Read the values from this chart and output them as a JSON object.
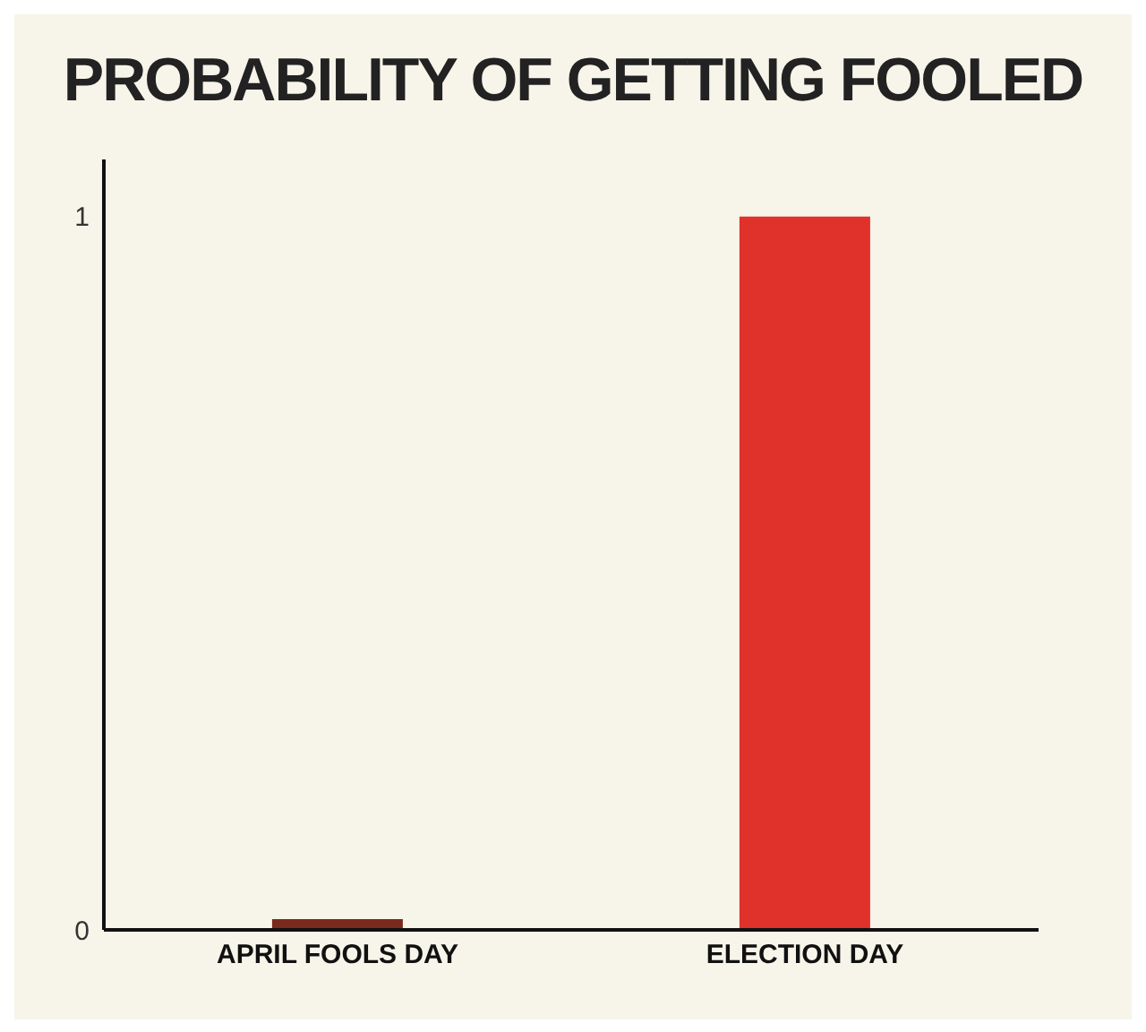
{
  "chart_data": {
    "type": "bar",
    "title": "PROBABILITY OF GETTING FOOLED",
    "categories": [
      "APRIL FOOLS DAY",
      "ELECTION DAY"
    ],
    "values": [
      0.015,
      1
    ],
    "colors": [
      "#7a2a1c",
      "#e0312b"
    ],
    "ylim": [
      0,
      1.08
    ],
    "yticks": [
      0,
      1
    ],
    "grid": false
  }
}
